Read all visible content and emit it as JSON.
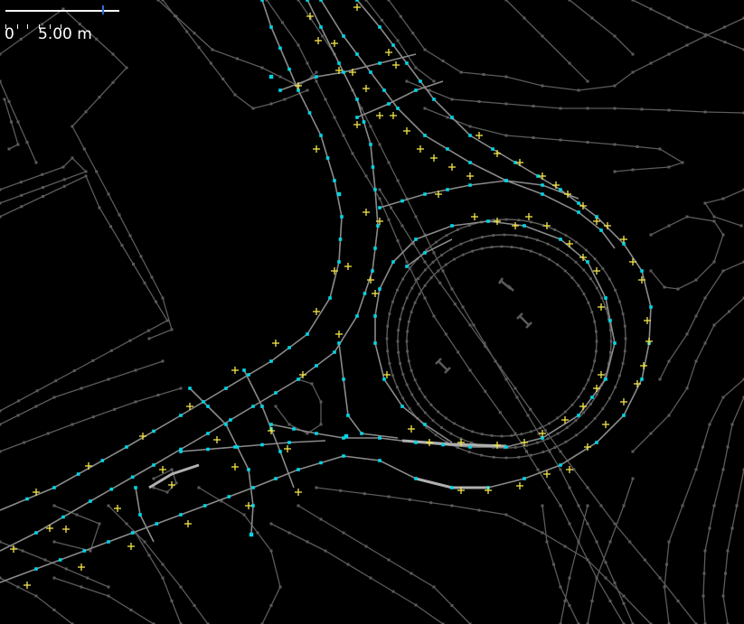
{
  "map": {
    "background_color": "#000000",
    "colors": {
      "building_outline": "#5b5b5b",
      "road_way": "#8a8a8a",
      "highlighted_way": "#b0b0b0",
      "node_marker": "#00d7e6",
      "tagged_node_marker": "#f5e64a"
    }
  },
  "scale_bar": {
    "zero_label": "0",
    "distance_label": "5.00 m"
  }
}
